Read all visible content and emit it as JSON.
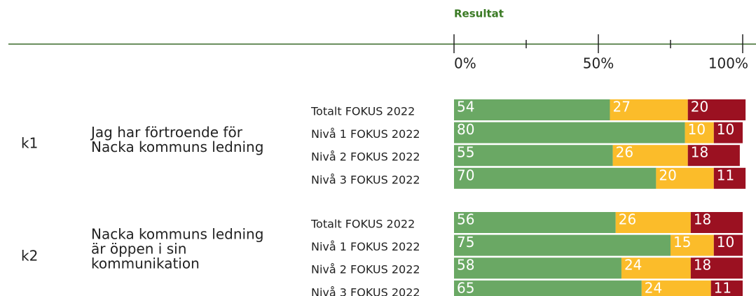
{
  "chart_data": {
    "type": "stacked-bar",
    "title": "Resultat",
    "xlim": [
      0,
      100
    ],
    "xticks": [
      {
        "value": 0,
        "label": "0%"
      },
      {
        "value": 50,
        "label": "50%"
      },
      {
        "value": 100,
        "label": "100%"
      }
    ],
    "xminorticks": [
      25,
      75
    ],
    "colors": [
      "#6aa864",
      "#fbbc2a",
      "#9b1121"
    ],
    "groups": [
      {
        "code": "k1",
        "question": [
          "Jag har förtroende för",
          "Nacka kommuns ledning"
        ],
        "rows": [
          {
            "label": "Totalt FOKUS 2022",
            "values": [
              54,
              27,
              20
            ]
          },
          {
            "label": "Nivå 1 FOKUS 2022",
            "values": [
              80,
              10,
              10
            ]
          },
          {
            "label": "Nivå 2 FOKUS 2022",
            "values": [
              55,
              26,
              18
            ]
          },
          {
            "label": "Nivå 3 FOKUS 2022",
            "values": [
              70,
              20,
              11
            ]
          }
        ]
      },
      {
        "code": "k2",
        "question": [
          "Nacka kommuns ledning",
          "är öppen i sin",
          "kommunikation"
        ],
        "rows": [
          {
            "label": "Totalt FOKUS 2022",
            "values": [
              56,
              26,
              18
            ]
          },
          {
            "label": "Nivå 1 FOKUS 2022",
            "values": [
              75,
              15,
              10
            ]
          },
          {
            "label": "Nivå 2 FOKUS 2022",
            "values": [
              58,
              24,
              18
            ]
          },
          {
            "label": "Nivå 3 FOKUS 2022",
            "values": [
              65,
              24,
              11
            ]
          }
        ]
      }
    ]
  }
}
